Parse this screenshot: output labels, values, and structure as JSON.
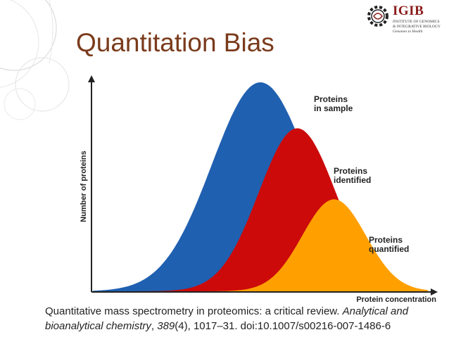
{
  "slide": {
    "title": "Quantitation Bias"
  },
  "logo": {
    "name": "IGIB",
    "line1": "INSTITUTE OF GENOMICS",
    "line2": "& INTEGRATIVE BIOLOGY",
    "line3": "Genomes to Health"
  },
  "chart_data": {
    "type": "area",
    "xlabel": "Protein concentration",
    "ylabel": "Number of proteins",
    "series": [
      {
        "name": "Proteins in sample",
        "color": "#2060b0",
        "peak_x": 0.5,
        "peak_y": 1.0,
        "width": 0.145
      },
      {
        "name": "Proteins identified",
        "color": "#cc0a0a",
        "peak_x": 0.61,
        "peak_y": 0.78,
        "width": 0.115
      },
      {
        "name": "Proteins quantified",
        "color": "#ffa000",
        "peak_x": 0.72,
        "peak_y": 0.44,
        "width": 0.095
      }
    ],
    "labels": {
      "sample": "Proteins\nin sample",
      "identified": "Proteins\nidentified",
      "quantified": "Proteins\nquantified"
    }
  },
  "citation": {
    "text_1": "Quantitative mass spectrometry in proteomics: a critical review. ",
    "journal": "Analytical and bioanalytical chemistry",
    "text_2": ", ",
    "volume": "389",
    "text_3": "(4), 1017–31. doi:10.1007/s00216-007-1486-6"
  }
}
